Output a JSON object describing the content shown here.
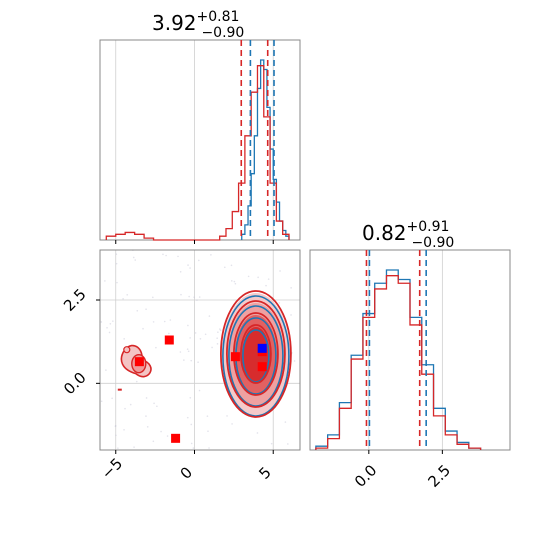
{
  "chart_data": [
    {
      "type": "histogram",
      "panel": "param1-marginal",
      "title": {
        "main": "3.92",
        "sup": "+0.81",
        "sub": "−0.90"
      },
      "xlim": [
        -6.0,
        6.7
      ],
      "grid": true,
      "series": [
        {
          "name": "",
          "color": "#1f77b4",
          "bins": [
            3.0,
            3.2,
            3.4,
            3.6,
            3.8,
            4.0,
            4.2,
            4.4,
            4.6,
            4.8,
            5.0,
            5.2,
            5.4,
            5.6,
            5.8,
            6.0
          ],
          "counts": [
            3,
            8,
            18,
            35,
            55,
            80,
            95,
            90,
            70,
            48,
            32,
            20,
            10,
            5,
            2
          ]
        },
        {
          "name": "",
          "color": "#d62728",
          "bins": [
            -5.6,
            -5.0,
            -4.4,
            -3.8,
            -3.2,
            -2.6,
            1.6,
            2.0,
            2.4,
            2.8,
            3.2,
            3.6,
            4.0,
            4.4,
            4.8,
            5.2,
            5.6,
            6.0
          ],
          "counts": [
            2,
            3,
            4,
            3,
            1,
            0,
            2,
            6,
            15,
            30,
            55,
            78,
            92,
            65,
            30,
            10,
            3
          ]
        }
      ],
      "quantile_lines": {
        "red": [
          2.97,
          4.65
        ],
        "blue": [
          3.55,
          5.05
        ]
      }
    },
    {
      "type": "histogram",
      "panel": "param2-marginal",
      "title": {
        "main": "0.82",
        "sup": "+0.91",
        "sub": "−0.90"
      },
      "xlim": [
        -2.0,
        4.8
      ],
      "xticks": [
        "0.0",
        "2.5"
      ],
      "grid": true,
      "series": [
        {
          "name": "",
          "color": "#1f77b4",
          "bins": [
            -1.8,
            -1.4,
            -1.0,
            -0.6,
            -0.2,
            0.2,
            0.6,
            1.0,
            1.4,
            1.8,
            2.2,
            2.6,
            3.0,
            3.4,
            3.8
          ],
          "counts": [
            2,
            8,
            25,
            50,
            72,
            88,
            95,
            90,
            70,
            45,
            22,
            10,
            4,
            1
          ]
        },
        {
          "name": "",
          "color": "#d62728",
          "bins": [
            -1.8,
            -1.4,
            -1.0,
            -0.6,
            -0.2,
            0.2,
            0.6,
            1.0,
            1.4,
            1.8,
            2.2,
            2.6,
            3.0,
            3.4,
            3.8
          ],
          "counts": [
            1,
            6,
            22,
            48,
            70,
            85,
            92,
            88,
            66,
            40,
            18,
            8,
            3,
            1
          ]
        }
      ],
      "quantile_lines": {
        "red": [
          -0.08,
          1.73
        ],
        "blue": [
          0.02,
          1.95
        ]
      }
    },
    {
      "type": "scatter",
      "panel": "joint-2d",
      "xlim": [
        -6.0,
        6.7
      ],
      "ylim": [
        -2.0,
        4.0
      ],
      "xticks": [
        "−5",
        "0",
        "5"
      ],
      "yticks": [
        "0.0",
        "2.5"
      ],
      "grid": true,
      "contour_sets": [
        {
          "name": "",
          "color": "#1f77b4",
          "center": [
            3.9,
            0.85
          ],
          "spread": [
            1.4,
            1.95
          ]
        },
        {
          "name": "",
          "color": "#d62728",
          "center": [
            3.9,
            0.85
          ],
          "spread": [
            1.4,
            2.05
          ]
        },
        {
          "name": "",
          "color": "#d62728",
          "center": [
            -3.6,
            0.65
          ],
          "spread": [
            0.7,
            0.7
          ]
        }
      ],
      "markers": [
        {
          "x": -3.5,
          "y": 0.65,
          "color": "#ff0000"
        },
        {
          "x": -1.6,
          "y": 1.3,
          "color": "#ff0000"
        },
        {
          "x": -1.2,
          "y": -1.65,
          "color": "#ff0000"
        },
        {
          "x": 2.6,
          "y": 0.8,
          "color": "#ff0000"
        },
        {
          "x": 4.3,
          "y": 0.5,
          "color": "#ff0000"
        },
        {
          "x": 4.3,
          "y": 0.95,
          "color": "#ff0000"
        },
        {
          "x": 4.3,
          "y": 1.05,
          "color": "#0000ff"
        }
      ]
    }
  ]
}
